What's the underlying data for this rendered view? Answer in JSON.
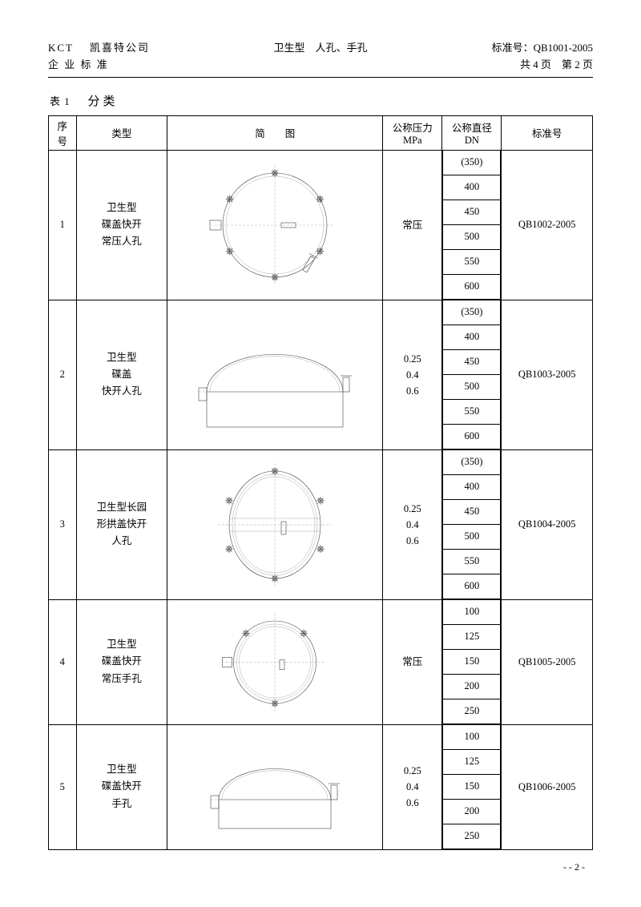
{
  "header": {
    "company_code": "KCT",
    "company_name": "凯喜特公司",
    "subtitle": "企 业 标 准",
    "doc_title": "卫生型　人孔、手孔",
    "std_label": "标准号：",
    "std_no": "QB1001-2005",
    "page_info": "共 4 页　第 2 页"
  },
  "caption": {
    "prefix": "表 1",
    "title": "分类"
  },
  "columns": {
    "seq": "序\n号",
    "type": "类型",
    "diagram": "简　　图",
    "pressure": "公称压力\nMPa",
    "dn": "公称直径\nDN",
    "std": "标准号"
  },
  "rows": [
    {
      "seq": "1",
      "type": "卫生型\n碟盖快开\n常压人孔",
      "pressure": "常压",
      "dn": [
        "(350)",
        "400",
        "450",
        "500",
        "550",
        "600"
      ],
      "std": "QB1002-2005",
      "shape": "circle_top"
    },
    {
      "seq": "2",
      "type": "卫生型\n碟盖\n快开人孔",
      "pressure": "0.25\n0.4\n0.6",
      "dn": [
        "(350)",
        "400",
        "450",
        "500",
        "550",
        "600"
      ],
      "std": "QB1003-2005",
      "shape": "dome_side"
    },
    {
      "seq": "3",
      "type": "卫生型长园\n形拱盖快开\n人孔",
      "pressure": "0.25\n0.4\n0.6",
      "dn": [
        "(350)",
        "400",
        "450",
        "500",
        "550",
        "600"
      ],
      "std": "QB1004-2005",
      "shape": "oval_top"
    },
    {
      "seq": "4",
      "type": "卫生型\n碟盖快开\n常压手孔",
      "pressure": "常压",
      "dn": [
        "100",
        "125",
        "150",
        "200",
        "250"
      ],
      "std": "QB1005-2005",
      "shape": "small_circle"
    },
    {
      "seq": "5",
      "type": "卫生型\n碟盖快开\n手孔",
      "pressure": "0.25\n0.4\n0.6",
      "dn": [
        "100",
        "125",
        "150",
        "200",
        "250"
      ],
      "std": "QB1006-2005",
      "shape": "small_dome"
    }
  ],
  "footer": "- - 2 -"
}
